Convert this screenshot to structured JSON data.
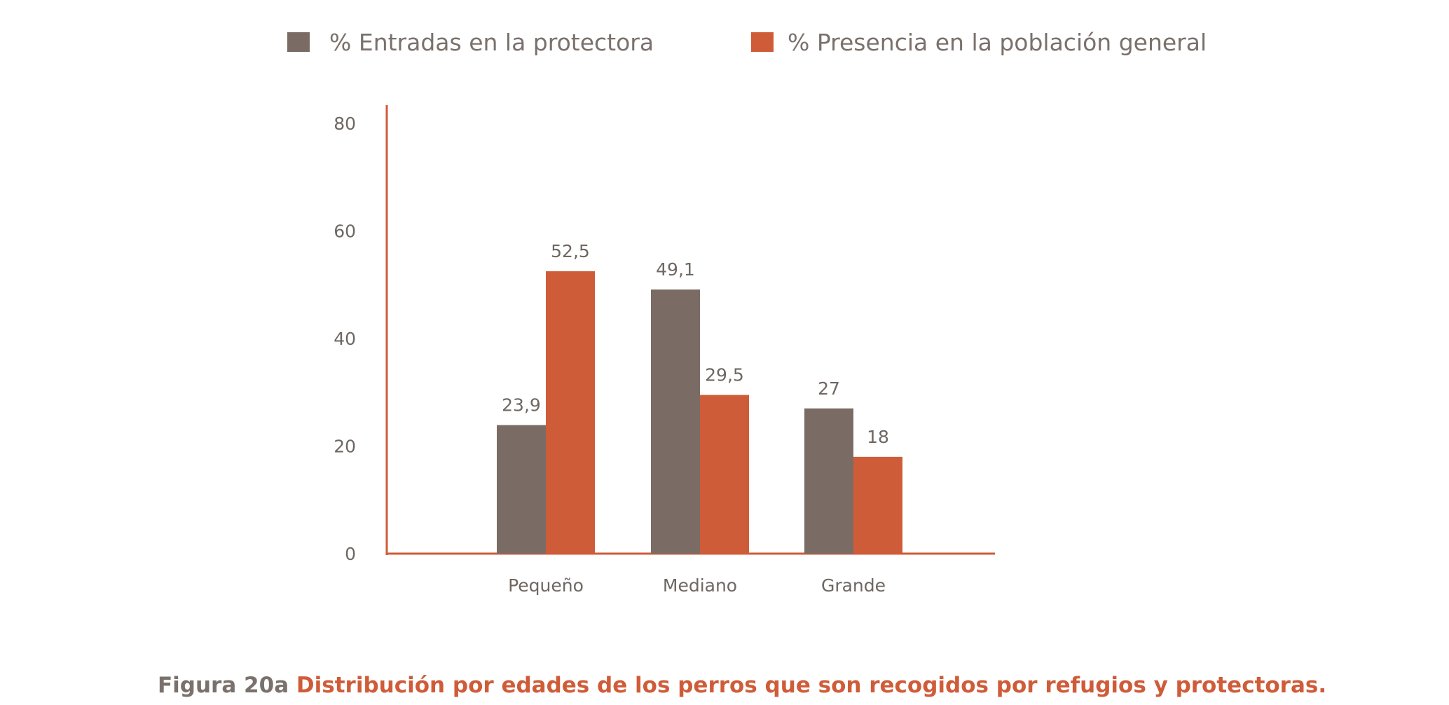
{
  "colors": {
    "entradas": "#7a6c64",
    "presencia": "#cf5c39",
    "axis": "#cf5c39"
  },
  "caption": {
    "number": "Figura 20a",
    "title": "Distribución por edades de los perros que son recogidos por refugios y protectoras."
  },
  "chart_data": {
    "type": "bar",
    "categories": [
      "Pequeño",
      "Mediano",
      "Grande"
    ],
    "series": [
      {
        "name": "% Entradas en la protectora",
        "values": [
          23.9,
          49.1,
          27
        ],
        "labels": [
          "23,9",
          "49,1",
          "27"
        ]
      },
      {
        "name": "%  Presencia en la población general",
        "values": [
          52.5,
          29.5,
          18
        ],
        "labels": [
          "52,5",
          "29,5",
          "18"
        ]
      }
    ],
    "yticks": [
      0,
      20,
      40,
      60,
      80
    ],
    "ylim": [
      0,
      80
    ],
    "legend": "top",
    "grid": false
  }
}
